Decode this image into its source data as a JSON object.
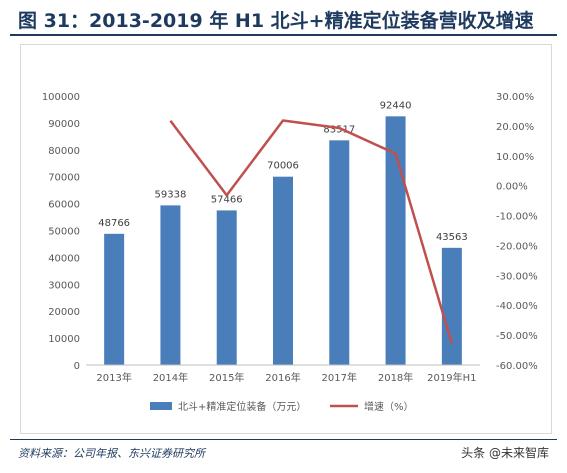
{
  "header": {
    "title": "图 31：2013-2019 年 H1 北斗+精准定位装备营收及增速"
  },
  "footer": {
    "source": "资料来源：公司年报、东兴证券研究所",
    "watermark": "头条 @未来智库"
  },
  "colors": {
    "bar": "#4a7ebb",
    "line": "#c0504d",
    "title": "#1f3a5f"
  },
  "chart_data": {
    "type": "bar",
    "categories": [
      "2013年",
      "2014年",
      "2015年",
      "2016年",
      "2017年",
      "2018年",
      "2019年H1"
    ],
    "series": [
      {
        "name": "北斗+精准定位装备（万元）",
        "type": "bar",
        "axis": "left",
        "values": [
          48766,
          59338,
          57466,
          70006,
          83517,
          92440,
          43563
        ],
        "labels": [
          "48766",
          "59338",
          "57466",
          "70006",
          "83517",
          "92440",
          "43563"
        ]
      },
      {
        "name": "增速（%）",
        "type": "line",
        "axis": "right",
        "values": [
          null,
          21.7,
          -3.2,
          21.8,
          19.3,
          10.7,
          -52.9
        ]
      }
    ],
    "y_left": {
      "min": 0,
      "max": 100000,
      "ticks": [
        "0",
        "10000",
        "20000",
        "30000",
        "40000",
        "50000",
        "60000",
        "70000",
        "80000",
        "90000",
        "100000"
      ]
    },
    "y_right": {
      "min": -60,
      "max": 30,
      "ticks": [
        "-60.00%",
        "-50.00%",
        "-40.00%",
        "-30.00%",
        "-20.00%",
        "-10.00%",
        "0.00%",
        "10.00%",
        "20.00%",
        "30.00%"
      ]
    },
    "legend_position": "bottom",
    "grid": false
  }
}
